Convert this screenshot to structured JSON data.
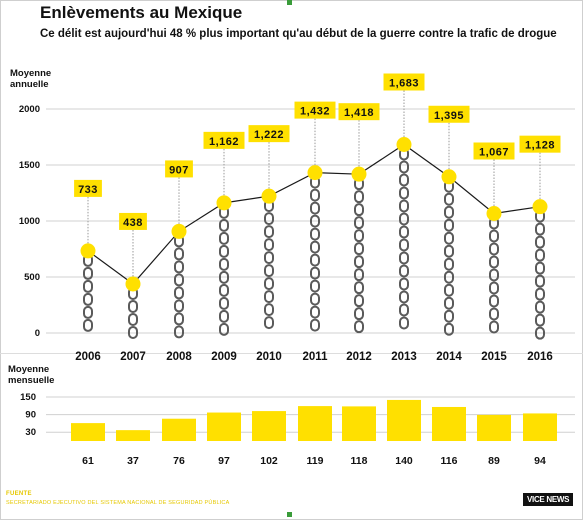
{
  "header": {
    "title": "Enlèvements au Mexique",
    "subtitle": "Ce délit est aujourd'hui 48 % plus important qu'au début de la guerre contre la trafic de drogue"
  },
  "chart_data": [
    {
      "type": "line",
      "ylabel": "Moyenne\nannuelle",
      "ylim": [
        0,
        2000
      ],
      "yticks": [
        "2000",
        "1500",
        "1000",
        "500",
        "0"
      ],
      "categories": [
        "2006",
        "2007",
        "2008",
        "2009",
        "2010",
        "2011",
        "2012",
        "2013",
        "2014",
        "2015",
        "2016"
      ],
      "values": [
        733,
        438,
        907,
        1162,
        1222,
        1432,
        1418,
        1683,
        1395,
        1067,
        1128
      ],
      "data_labels": [
        "733",
        "438",
        "907",
        "1,162",
        "1,222",
        "1,432",
        "1,418",
        "1,683",
        "1,395",
        "1,067",
        "1,128"
      ],
      "grid": true
    },
    {
      "type": "bar",
      "ylabel": "Moyenne\nmensuelle",
      "ylim": [
        0,
        150
      ],
      "yticks": [
        "150",
        "90",
        "30"
      ],
      "categories": [
        "2006",
        "2007",
        "2008",
        "2009",
        "2010",
        "2011",
        "2012",
        "2013",
        "2014",
        "2015",
        "2016"
      ],
      "values": [
        61,
        37,
        76,
        97,
        102,
        119,
        118,
        140,
        116,
        89,
        94
      ],
      "data_labels": [
        "61",
        "37",
        "76",
        "97",
        "102",
        "119",
        "118",
        "140",
        "116",
        "89",
        "94"
      ],
      "grid": true
    }
  ],
  "colors": {
    "accent": "#ffe000",
    "line": "#1a1a1a",
    "grid": "#d0d0d0"
  },
  "footer": {
    "source_label": "FUENTE",
    "source_text": "SECRETARIADO EJECUTIVO DEL SISTEMA NACIONAL DE SEGURIDAD PÚBLICA",
    "logo": "VICE NEWS"
  }
}
